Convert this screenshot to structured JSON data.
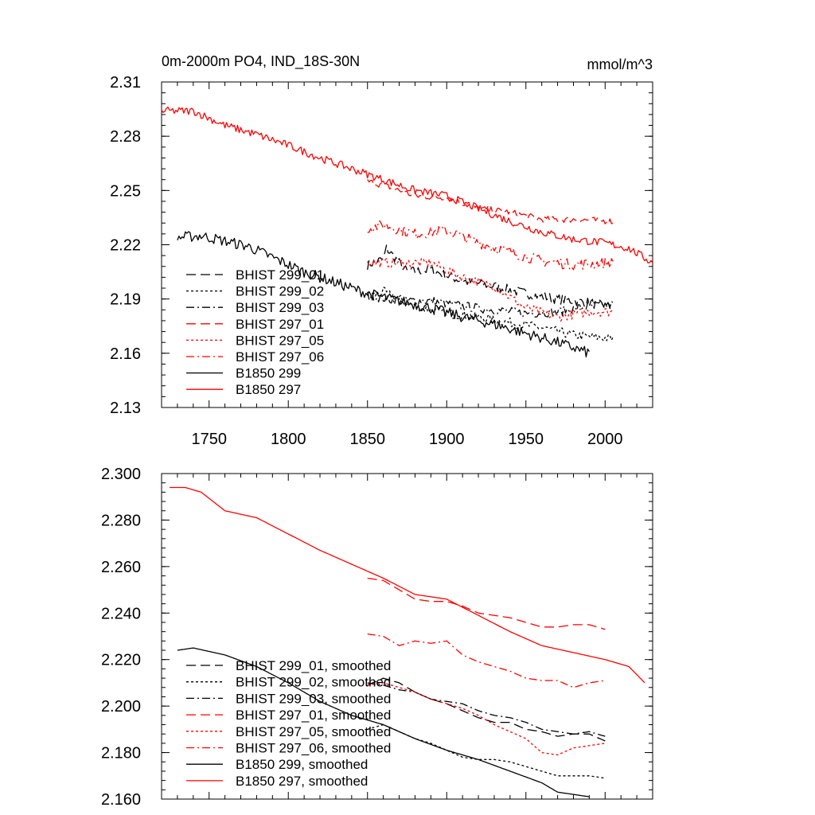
{
  "figure": {
    "title_left": "0m-2000m PO4, IND_18S-30N",
    "title_right": "mmol/m^3"
  },
  "chart_data": [
    {
      "type": "line",
      "title": "0m-2000m PO4, IND_18S-30N",
      "units": "mmol/m^3",
      "xlim": [
        1720,
        2030
      ],
      "ylim": [
        2.13,
        2.31
      ],
      "x_ticks": [
        1750,
        1800,
        1850,
        1900,
        1950,
        2000
      ],
      "x_tick_labels": [
        "1750",
        "1800",
        "1850",
        "1900",
        "1950",
        "2000"
      ],
      "y_ticks": [
        2.13,
        2.16,
        2.19,
        2.22,
        2.25,
        2.28,
        2.31
      ],
      "y_tick_labels": [
        "2.13",
        "2.16",
        "2.19",
        "2.22",
        "2.25",
        "2.28",
        "2.31"
      ],
      "legend_position": "bottom-left",
      "grid": false,
      "series": [
        {
          "name": "BHIST 299_01",
          "color": "#000000",
          "dash": "dashed",
          "noise": 0.0028,
          "x": [
            1850,
            1860,
            1862,
            1875,
            1890,
            1910,
            1930,
            1950,
            1970,
            1990,
            2005
          ],
          "y": [
            2.209,
            2.212,
            2.218,
            2.205,
            2.206,
            2.2,
            2.197,
            2.193,
            2.19,
            2.188,
            2.185
          ]
        },
        {
          "name": "BHIST 299_02",
          "color": "#000000",
          "dash": "dotted",
          "noise": 0.0026,
          "x": [
            1850,
            1860,
            1880,
            1900,
            1920,
            1940,
            1960,
            1980,
            2005
          ],
          "y": [
            2.191,
            2.194,
            2.186,
            2.182,
            2.18,
            2.177,
            2.174,
            2.17,
            2.168
          ]
        },
        {
          "name": "BHIST 299_03",
          "color": "#000000",
          "dash": "dashdot",
          "noise": 0.0026,
          "x": [
            1850,
            1870,
            1890,
            1910,
            1930,
            1950,
            1970,
            1990,
            2005
          ],
          "y": [
            2.192,
            2.189,
            2.189,
            2.186,
            2.184,
            2.182,
            2.183,
            2.186,
            2.187
          ]
        },
        {
          "name": "BHIST 297_01",
          "color": "#ff0000",
          "dash": "dashed",
          "noise": 0.0018,
          "x": [
            1850,
            1860,
            1880,
            1900,
            1920,
            1940,
            1960,
            1980,
            2005
          ],
          "y": [
            2.255,
            2.253,
            2.247,
            2.246,
            2.24,
            2.238,
            2.234,
            2.234,
            2.233
          ]
        },
        {
          "name": "BHIST 297_05",
          "color": "#ff0000",
          "dash": "dotted",
          "noise": 0.0026,
          "x": [
            1850,
            1870,
            1890,
            1910,
            1930,
            1950,
            1970,
            1990,
            2005
          ],
          "y": [
            2.21,
            2.21,
            2.21,
            2.202,
            2.197,
            2.185,
            2.18,
            2.183,
            2.183
          ]
        },
        {
          "name": "BHIST 297_06",
          "color": "#ff0000",
          "dash": "dashdot",
          "noise": 0.003,
          "x": [
            1850,
            1860,
            1880,
            1900,
            1920,
            1940,
            1960,
            1980,
            2005
          ],
          "y": [
            2.229,
            2.231,
            2.226,
            2.228,
            2.221,
            2.216,
            2.211,
            2.209,
            2.21
          ]
        },
        {
          "name": "B1850 299",
          "color": "#000000",
          "dash": "solid",
          "noise": 0.003,
          "x": [
            1730,
            1745,
            1760,
            1775,
            1790,
            1810,
            1830,
            1850,
            1870,
            1890,
            1910,
            1930,
            1950,
            1970,
            1990
          ],
          "y": [
            2.224,
            2.225,
            2.222,
            2.219,
            2.213,
            2.205,
            2.199,
            2.193,
            2.189,
            2.185,
            2.18,
            2.176,
            2.171,
            2.166,
            2.16
          ]
        },
        {
          "name": "B1850 297",
          "color": "#ff0000",
          "dash": "solid",
          "noise": 0.0022,
          "x": [
            1720,
            1740,
            1760,
            1780,
            1800,
            1820,
            1840,
            1860,
            1880,
            1900,
            1920,
            1940,
            1960,
            1980,
            2000,
            2015,
            2030
          ],
          "y": [
            2.294,
            2.294,
            2.286,
            2.281,
            2.275,
            2.268,
            2.262,
            2.256,
            2.25,
            2.247,
            2.24,
            2.233,
            2.227,
            2.223,
            2.221,
            2.218,
            2.21
          ]
        }
      ]
    },
    {
      "type": "line",
      "xlim": [
        1720,
        2030
      ],
      "ylim": [
        2.16,
        2.3
      ],
      "y_ticks": [
        2.16,
        2.18,
        2.2,
        2.22,
        2.24,
        2.26,
        2.28,
        2.3
      ],
      "y_tick_labels": [
        "2.160",
        "2.180",
        "2.200",
        "2.220",
        "2.240",
        "2.260",
        "2.280",
        "2.300"
      ],
      "legend_position": "bottom-left",
      "grid": false,
      "series": [
        {
          "name": "BHIST 299_01, smoothed",
          "color": "#000000",
          "dash": "dashed",
          "x": [
            1850,
            1860,
            1870,
            1880,
            1890,
            1900,
            1910,
            1920,
            1930,
            1940,
            1950,
            1960,
            1970,
            1980,
            1990,
            2000
          ],
          "y": [
            2.209,
            2.212,
            2.21,
            2.206,
            2.203,
            2.201,
            2.198,
            2.195,
            2.193,
            2.193,
            2.19,
            2.189,
            2.187,
            2.188,
            2.188,
            2.185
          ]
        },
        {
          "name": "BHIST 299_02, smoothed",
          "color": "#000000",
          "dash": "dotted",
          "x": [
            1850,
            1860,
            1870,
            1880,
            1890,
            1900,
            1910,
            1920,
            1930,
            1940,
            1950,
            1960,
            1970,
            1980,
            1990,
            2000
          ],
          "y": [
            2.19,
            2.192,
            2.189,
            2.186,
            2.184,
            2.181,
            2.178,
            2.177,
            2.177,
            2.176,
            2.174,
            2.172,
            2.17,
            2.17,
            2.17,
            2.169
          ]
        },
        {
          "name": "BHIST 299_03, smoothed",
          "color": "#000000",
          "dash": "dashdot",
          "x": [
            1850,
            1860,
            1870,
            1880,
            1890,
            1900,
            1910,
            1920,
            1930,
            1940,
            1950,
            1960,
            1970,
            1980,
            1990,
            2000
          ],
          "y": [
            2.21,
            2.209,
            2.207,
            2.206,
            2.203,
            2.202,
            2.201,
            2.198,
            2.196,
            2.195,
            2.193,
            2.19,
            2.189,
            2.188,
            2.189,
            2.187
          ]
        },
        {
          "name": "BHIST 297_01, smoothed",
          "color": "#ff0000",
          "dash": "dashed",
          "x": [
            1850,
            1860,
            1870,
            1880,
            1890,
            1900,
            1910,
            1920,
            1930,
            1940,
            1950,
            1960,
            1970,
            1980,
            1990,
            2000
          ],
          "y": [
            2.255,
            2.254,
            2.25,
            2.246,
            2.245,
            2.245,
            2.243,
            2.24,
            2.239,
            2.238,
            2.236,
            2.234,
            2.234,
            2.235,
            2.235,
            2.233
          ]
        },
        {
          "name": "BHIST 297_05, smoothed",
          "color": "#ff0000",
          "dash": "dotted",
          "x": [
            1850,
            1860,
            1870,
            1880,
            1890,
            1900,
            1910,
            1920,
            1930,
            1940,
            1950,
            1960,
            1970,
            1980,
            1990,
            2000
          ],
          "y": [
            2.209,
            2.21,
            2.208,
            2.206,
            2.203,
            2.201,
            2.199,
            2.196,
            2.192,
            2.189,
            2.186,
            2.18,
            2.179,
            2.182,
            2.183,
            2.184
          ]
        },
        {
          "name": "BHIST 297_06, smoothed",
          "color": "#ff0000",
          "dash": "dashdot",
          "x": [
            1850,
            1860,
            1870,
            1880,
            1890,
            1900,
            1910,
            1920,
            1930,
            1940,
            1950,
            1960,
            1970,
            1980,
            1990,
            2000
          ],
          "y": [
            2.231,
            2.23,
            2.226,
            2.228,
            2.227,
            2.228,
            2.222,
            2.219,
            2.217,
            2.215,
            2.212,
            2.211,
            2.211,
            2.208,
            2.21,
            2.211
          ]
        },
        {
          "name": "B1850 299, smoothed",
          "color": "#000000",
          "dash": "solid",
          "x": [
            1730,
            1740,
            1760,
            1780,
            1800,
            1820,
            1840,
            1860,
            1880,
            1900,
            1920,
            1940,
            1960,
            1970,
            1980,
            1990
          ],
          "y": [
            2.224,
            2.225,
            2.222,
            2.217,
            2.21,
            2.202,
            2.196,
            2.192,
            2.186,
            2.181,
            2.177,
            2.172,
            2.167,
            2.163,
            2.162,
            2.161
          ]
        },
        {
          "name": "B1850 297, smoothed",
          "color": "#ff0000",
          "dash": "solid",
          "x": [
            1725,
            1735,
            1745,
            1760,
            1780,
            1800,
            1820,
            1840,
            1860,
            1880,
            1900,
            1920,
            1940,
            1960,
            1980,
            2000,
            2015,
            2025
          ],
          "y": [
            2.294,
            2.294,
            2.292,
            2.284,
            2.281,
            2.274,
            2.267,
            2.261,
            2.255,
            2.248,
            2.246,
            2.239,
            2.232,
            2.226,
            2.223,
            2.22,
            2.217,
            2.21
          ]
        }
      ]
    }
  ]
}
